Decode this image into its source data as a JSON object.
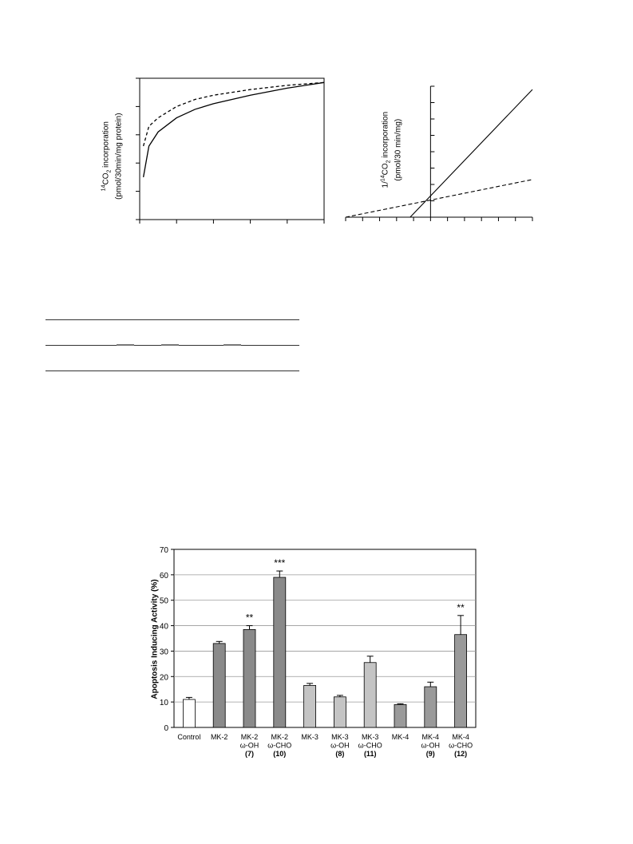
{
  "figure_top_left": {
    "ylabel_line1_pre": "14",
    "ylabel_line1_main": "CO",
    "ylabel_line1_sub": "2",
    "ylabel_line1_post": " incorporation",
    "ylabel_line2": "(pmol/30min/mg protein)"
  },
  "figure_top_right": {
    "ylabel_line1_pre": "1/",
    "ylabel_line1_sup": "14",
    "ylabel_line1_main": "CO",
    "ylabel_line1_sub": "2",
    "ylabel_line1_post": " incorporation",
    "ylabel_line2": "(pmol/30 min/mg)"
  },
  "chart_data": [
    {
      "type": "line",
      "title": "",
      "xlabel": "",
      "ylabel": "14CO2 incorporation (pmol/30min/mg protein)",
      "xlim": [
        0,
        5
      ],
      "ylim": [
        0,
        5
      ],
      "grid": false,
      "series": [
        {
          "style": "solid",
          "x": [
            0.1,
            0.25,
            0.5,
            1,
            1.5,
            2,
            3,
            4,
            5
          ],
          "y": [
            1.5,
            2.6,
            3.1,
            3.6,
            3.9,
            4.1,
            4.4,
            4.65,
            4.85
          ]
        },
        {
          "style": "dashed",
          "x": [
            0.1,
            0.25,
            0.5,
            1,
            1.5,
            2,
            3,
            4,
            5
          ],
          "y": [
            2.6,
            3.3,
            3.6,
            4.0,
            4.25,
            4.4,
            4.6,
            4.75,
            4.85
          ]
        }
      ]
    },
    {
      "type": "line",
      "title": "",
      "xlabel": "",
      "ylabel": "1/14CO2 incorporation (pmol/30 min/mg)",
      "xlim": [
        -5,
        6
      ],
      "ylim": [
        0,
        8
      ],
      "grid": false,
      "series": [
        {
          "style": "solid",
          "x": [
            -1.2,
            6
          ],
          "y": [
            0,
            7.8
          ]
        },
        {
          "style": "dashed",
          "x": [
            -5,
            6
          ],
          "y": [
            0,
            2.3
          ]
        }
      ]
    },
    {
      "type": "bar",
      "title": "",
      "xlabel": "",
      "ylabel": "Apoptosis Inducing Activity (%)",
      "ylim": [
        0,
        70
      ],
      "yticks": [
        0,
        10,
        20,
        30,
        40,
        50,
        60,
        70
      ],
      "grid": true,
      "categories": [
        [
          "Control"
        ],
        [
          "MK-2"
        ],
        [
          "MK-2",
          "ω-OH",
          "(7)"
        ],
        [
          "MK-2",
          "ω-CHO",
          "(10)"
        ],
        [
          "MK-3"
        ],
        [
          "MK-3",
          "ω-OH",
          "(8)"
        ],
        [
          "MK-3",
          "ω-CHO",
          "(11)"
        ],
        [
          "MK-4"
        ],
        [
          "MK-4",
          "ω-OH",
          "(9)"
        ],
        [
          "MK-4",
          "ω-CHO",
          "(12)"
        ]
      ],
      "values": [
        11,
        33,
        38.5,
        59,
        16.5,
        12,
        25.5,
        9,
        16,
        36.5
      ],
      "errors": [
        0.8,
        0.8,
        1.5,
        2.5,
        0.8,
        0.6,
        2.5,
        0.3,
        1.8,
        7.5
      ],
      "annotations": [
        "",
        "",
        "**",
        "***",
        "",
        "",
        "",
        "",
        "",
        "**"
      ],
      "fills": [
        "#ffffff",
        "#8a8a8a",
        "#8a8a8a",
        "#8a8a8a",
        "#c4c4c4",
        "#c4c4c4",
        "#c4c4c4",
        "#9a9a9a",
        "#9a9a9a",
        "#9a9a9a"
      ]
    }
  ]
}
